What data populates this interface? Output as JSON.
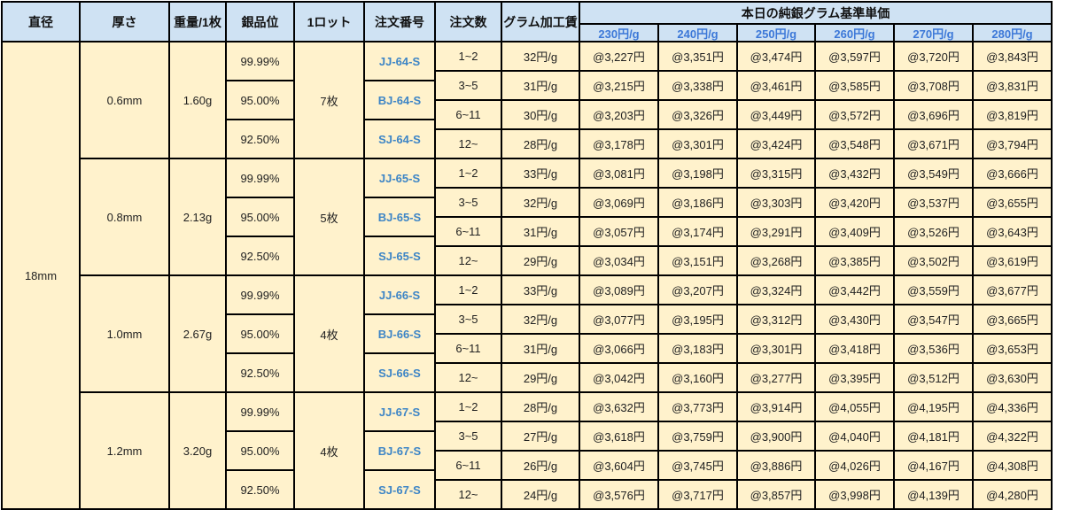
{
  "headers": {
    "diameter": "直径",
    "thickness": "厚さ",
    "weight": "重量/1枚",
    "purity": "銀品位",
    "lot": "1ロット",
    "order_no": "注文番号",
    "qty": "注文数",
    "fee": "グラム加工賃",
    "base_price": "本日の純銀グラム基準単価",
    "price_cols": [
      "230円/g",
      "240円/g",
      "250円/g",
      "260円/g",
      "270円/g",
      "280円/g"
    ]
  },
  "colors": {
    "header_bg": "#cfe2f3",
    "body_bg": "#fff2cc",
    "accent_blue": "#3d85c6",
    "border": "#000000"
  },
  "diameter": "18mm",
  "groups": [
    {
      "thickness": "0.6mm",
      "weight": "1.60g",
      "lot": "7枚",
      "purities": [
        {
          "grade": "99.99%",
          "order_no": "JJ-64-S"
        },
        {
          "grade": "95.00%",
          "order_no": "BJ-64-S"
        },
        {
          "grade": "92.50%",
          "order_no": "SJ-64-S"
        }
      ],
      "rows": [
        {
          "qty": "1~2",
          "fee": "32円/g",
          "prices": [
            "@3,227円",
            "@3,351円",
            "@3,474円",
            "@3,597円",
            "@3,720円",
            "@3,843円"
          ]
        },
        {
          "qty": "3~5",
          "fee": "31円/g",
          "prices": [
            "@3,215円",
            "@3,338円",
            "@3,461円",
            "@3,585円",
            "@3,708円",
            "@3,831円"
          ]
        },
        {
          "qty": "6~11",
          "fee": "30円/g",
          "prices": [
            "@3,203円",
            "@3,326円",
            "@3,449円",
            "@3,572円",
            "@3,696円",
            "@3,819円"
          ]
        },
        {
          "qty": "12~",
          "fee": "28円/g",
          "prices": [
            "@3,178円",
            "@3,301円",
            "@3,424円",
            "@3,548円",
            "@3,671円",
            "@3,794円"
          ]
        }
      ]
    },
    {
      "thickness": "0.8mm",
      "weight": "2.13g",
      "lot": "5枚",
      "purities": [
        {
          "grade": "99.99%",
          "order_no": "JJ-65-S"
        },
        {
          "grade": "95.00%",
          "order_no": "BJ-65-S"
        },
        {
          "grade": "92.50%",
          "order_no": "SJ-65-S"
        }
      ],
      "rows": [
        {
          "qty": "1~2",
          "fee": "33円/g",
          "prices": [
            "@3,081円",
            "@3,198円",
            "@3,315円",
            "@3,432円",
            "@3,549円",
            "@3,666円"
          ]
        },
        {
          "qty": "3~5",
          "fee": "32円/g",
          "prices": [
            "@3,069円",
            "@3,186円",
            "@3,303円",
            "@3,420円",
            "@3,537円",
            "@3,655円"
          ]
        },
        {
          "qty": "6~11",
          "fee": "31円/g",
          "prices": [
            "@3,057円",
            "@3,174円",
            "@3,291円",
            "@3,409円",
            "@3,526円",
            "@3,643円"
          ]
        },
        {
          "qty": "12~",
          "fee": "29円/g",
          "prices": [
            "@3,034円",
            "@3,151円",
            "@3,268円",
            "@3,385円",
            "@3,502円",
            "@3,619円"
          ]
        }
      ]
    },
    {
      "thickness": "1.0mm",
      "weight": "2.67g",
      "lot": "4枚",
      "purities": [
        {
          "grade": "99.99%",
          "order_no": "JJ-66-S"
        },
        {
          "grade": "95.00%",
          "order_no": "BJ-66-S"
        },
        {
          "grade": "92.50%",
          "order_no": "SJ-66-S"
        }
      ],
      "rows": [
        {
          "qty": "1~2",
          "fee": "33円/g",
          "prices": [
            "@3,089円",
            "@3,207円",
            "@3,324円",
            "@3,442円",
            "@3,559円",
            "@3,677円"
          ]
        },
        {
          "qty": "3~5",
          "fee": "32円/g",
          "prices": [
            "@3,077円",
            "@3,195円",
            "@3,312円",
            "@3,430円",
            "@3,547円",
            "@3,665円"
          ]
        },
        {
          "qty": "6~11",
          "fee": "31円/g",
          "prices": [
            "@3,066円",
            "@3,183円",
            "@3,301円",
            "@3,418円",
            "@3,536円",
            "@3,653円"
          ]
        },
        {
          "qty": "12~",
          "fee": "29円/g",
          "prices": [
            "@3,042円",
            "@3,160円",
            "@3,277円",
            "@3,395円",
            "@3,512円",
            "@3,630円"
          ]
        }
      ]
    },
    {
      "thickness": "1.2mm",
      "weight": "3.20g",
      "lot": "4枚",
      "purities": [
        {
          "grade": "99.99%",
          "order_no": "JJ-67-S"
        },
        {
          "grade": "95.00%",
          "order_no": "BJ-67-S"
        },
        {
          "grade": "92.50%",
          "order_no": "SJ-67-S"
        }
      ],
      "rows": [
        {
          "qty": "1~2",
          "fee": "28円/g",
          "prices": [
            "@3,632円",
            "@3,773円",
            "@3,914円",
            "@4,055円",
            "@4,195円",
            "@4,336円"
          ]
        },
        {
          "qty": "3~5",
          "fee": "27円/g",
          "prices": [
            "@3,618円",
            "@3,759円",
            "@3,900円",
            "@4,040円",
            "@4,181円",
            "@4,322円"
          ]
        },
        {
          "qty": "6~11",
          "fee": "26円/g",
          "prices": [
            "@3,604円",
            "@3,745円",
            "@3,886円",
            "@4,026円",
            "@4,167円",
            "@4,308円"
          ]
        },
        {
          "qty": "12~",
          "fee": "24円/g",
          "prices": [
            "@3,576円",
            "@3,717円",
            "@3,857円",
            "@3,998円",
            "@4,139円",
            "@4,280円"
          ]
        }
      ]
    }
  ]
}
